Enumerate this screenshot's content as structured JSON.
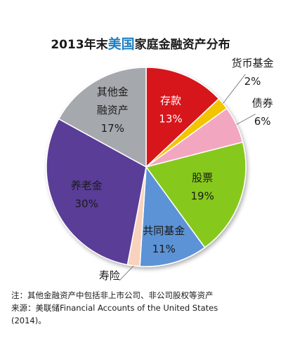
{
  "title": {
    "prefix": "2013年末",
    "highlight": "美国",
    "suffix": "家庭金融资产分布",
    "highlight_color": "#1f7fc1"
  },
  "chart_data": {
    "type": "pie",
    "slices": [
      {
        "label": "存款",
        "value": 13,
        "display": "13%",
        "color": "#d7141f"
      },
      {
        "label": "货币基金",
        "value": 2,
        "display": "2%",
        "color": "#f2c500"
      },
      {
        "label": "债券",
        "value": 6,
        "display": "6%",
        "color": "#f3a6bf"
      },
      {
        "label": "股票",
        "value": 19,
        "display": "19%",
        "color": "#86c91d"
      },
      {
        "label": "共同基金",
        "value": 11,
        "display": "11%",
        "color": "#5b93d6"
      },
      {
        "label": "寿险",
        "value": 2,
        "display": "2%",
        "color": "#f8d2bc"
      },
      {
        "label": "养老金",
        "value": 30,
        "display": "30%",
        "color": "#5a3c97"
      },
      {
        "label": "其他金融资产",
        "label_lines": [
          "其他金",
          "融资产"
        ],
        "value": 17,
        "display": "17%",
        "color": "#a5a9ae"
      }
    ],
    "start": "12 o'clock",
    "direction": "clockwise"
  },
  "notes": [
    "注：其他金融资产中包括非上市公司、非公司股权等资产",
    "来源：美联储Financial Accounts of the United States",
    "(2014)。"
  ]
}
